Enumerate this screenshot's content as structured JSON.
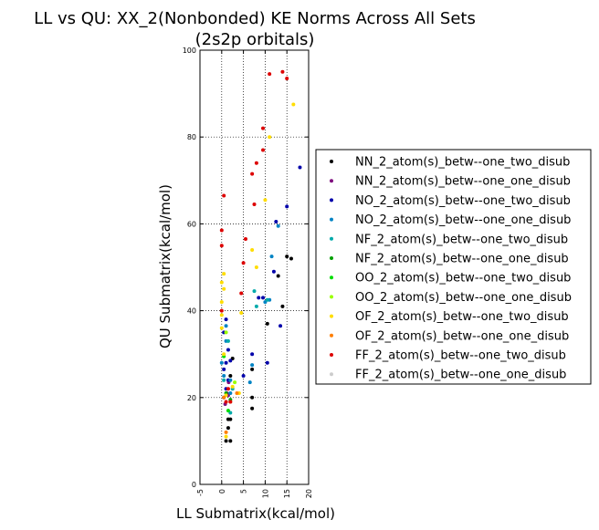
{
  "chart_data": {
    "type": "scatter",
    "title": "LL vs QU: XX_2(Nonbonded) KE Norms Across All Sets",
    "subtitle": "(2s2p orbitals)",
    "xlabel": "LL Submatrix(kcal/mol)",
    "ylabel": "QU Submatrix(kcal/mol)",
    "xlim": [
      -5,
      20
    ],
    "ylim": [
      0,
      100
    ],
    "x_ticks": [
      "-5",
      "0",
      "5",
      "10",
      "15",
      "20"
    ],
    "y_ticks": [
      "0",
      "20",
      "40",
      "60",
      "80",
      "100"
    ],
    "x_tick_values": [
      -5,
      0,
      5,
      10,
      15,
      20
    ],
    "y_tick_values": [
      0,
      20,
      40,
      60,
      80,
      100
    ],
    "grid": true,
    "legend_position": "outside-right",
    "series": [
      {
        "name": "NN_2_atom(s)_betw--one_two_disub",
        "color": "#000000",
        "points": [
          [
            1,
            10
          ],
          [
            2,
            10
          ],
          [
            1.5,
            13
          ],
          [
            1.5,
            15
          ],
          [
            2,
            15
          ],
          [
            2,
            25
          ],
          [
            2.5,
            29
          ],
          [
            7,
            17.5
          ],
          [
            7,
            20
          ],
          [
            7,
            26.5
          ],
          [
            10.5,
            37
          ],
          [
            13,
            48
          ],
          [
            14,
            41
          ],
          [
            15,
            52.5
          ],
          [
            16,
            52
          ]
        ]
      },
      {
        "name": "NN_2_atom(s)_betw--one_one_disub",
        "color": "#7f0f7e",
        "points": [
          [
            0.8,
            18.5
          ],
          [
            1.2,
            21
          ],
          [
            1.6,
            23.5
          ],
          [
            1.5,
            20.5
          ]
        ]
      },
      {
        "name": "NO_2_atom(s)_betw--one_two_disub",
        "color": "#0000aa",
        "points": [
          [
            0.5,
            20
          ],
          [
            1,
            22
          ],
          [
            1.5,
            24
          ],
          [
            0.5,
            26.5
          ],
          [
            1,
            28
          ],
          [
            1.5,
            31
          ],
          [
            0.5,
            35
          ],
          [
            1,
            38
          ],
          [
            2,
            28.5
          ],
          [
            5,
            25
          ],
          [
            7,
            30
          ],
          [
            8.5,
            43
          ],
          [
            9.5,
            43
          ],
          [
            10.5,
            28
          ],
          [
            12,
            49
          ],
          [
            12.5,
            60.5
          ],
          [
            13.5,
            36.5
          ],
          [
            15,
            64
          ],
          [
            18,
            73
          ]
        ]
      },
      {
        "name": "NO_2_atom(s)_betw--one_one_disub",
        "color": "#0083c4",
        "points": [
          [
            0,
            28
          ],
          [
            0.5,
            25
          ],
          [
            1,
            33
          ],
          [
            1,
            36.5
          ],
          [
            2,
            21
          ],
          [
            2,
            24
          ],
          [
            6.5,
            23.5
          ],
          [
            7,
            27.5
          ],
          [
            10,
            42
          ],
          [
            11,
            42.5
          ],
          [
            11.5,
            52.5
          ],
          [
            13,
            59.5
          ]
        ]
      },
      {
        "name": "NF_2_atom(s)_betw--one_two_disub",
        "color": "#00aaaa",
        "points": [
          [
            0.5,
            24
          ],
          [
            1.5,
            33
          ],
          [
            2,
            16.5
          ],
          [
            2.5,
            22
          ],
          [
            7.5,
            44.5
          ],
          [
            8,
            41
          ],
          [
            10.5,
            42.5
          ]
        ]
      },
      {
        "name": "NF_2_atom(s)_betw--one_one_disub",
        "color": "#00a000",
        "points": [
          [
            1,
            21
          ],
          [
            2,
            19.5
          ]
        ]
      },
      {
        "name": "OO_2_atom(s)_betw--one_two_disub",
        "color": "#00dd00",
        "points": [
          [
            0.5,
            29.5
          ],
          [
            1.5,
            17
          ]
        ]
      },
      {
        "name": "OO_2_atom(s)_betw--one_one_disub",
        "color": "#99ff00",
        "points": [
          [
            1,
            35
          ],
          [
            3,
            23.5
          ]
        ]
      },
      {
        "name": "OF_2_atom(s)_betw--one_two_disub",
        "color": "#ffdd00",
        "points": [
          [
            0,
            36
          ],
          [
            0,
            39
          ],
          [
            0,
            42
          ],
          [
            0,
            46.5
          ],
          [
            0.5,
            48.5
          ],
          [
            0.5,
            45
          ],
          [
            0.5,
            30
          ],
          [
            1,
            11
          ],
          [
            1,
            20.5
          ],
          [
            2.5,
            22.5
          ],
          [
            4,
            21
          ],
          [
            4.5,
            39.5
          ],
          [
            7,
            54
          ],
          [
            8,
            50
          ],
          [
            10,
            65.5
          ],
          [
            11,
            80
          ],
          [
            16.5,
            87.5
          ]
        ]
      },
      {
        "name": "OF_2_atom(s)_betw--one_one_disub",
        "color": "#ff7f00",
        "points": [
          [
            0.5,
            20
          ],
          [
            1,
            12
          ],
          [
            2,
            19
          ],
          [
            3.5,
            21
          ]
        ]
      },
      {
        "name": "FF_2_atom(s)_betw--one_two_disub",
        "color": "#dd0000",
        "points": [
          [
            0,
            40
          ],
          [
            0,
            55
          ],
          [
            0,
            58.5
          ],
          [
            0.5,
            66.5
          ],
          [
            1,
            19
          ],
          [
            1.5,
            22
          ],
          [
            2,
            19
          ],
          [
            4.5,
            44
          ],
          [
            5,
            51
          ],
          [
            5.5,
            56.5
          ],
          [
            7,
            71.5
          ],
          [
            7.5,
            64.5
          ],
          [
            8,
            74
          ],
          [
            9.5,
            77
          ],
          [
            9.5,
            82
          ],
          [
            11,
            94.5
          ],
          [
            14,
            95
          ],
          [
            15,
            93.5
          ]
        ]
      },
      {
        "name": "FF_2_atom(s)_betw--one_one_disub",
        "color": "#cccccc",
        "points": []
      }
    ]
  }
}
